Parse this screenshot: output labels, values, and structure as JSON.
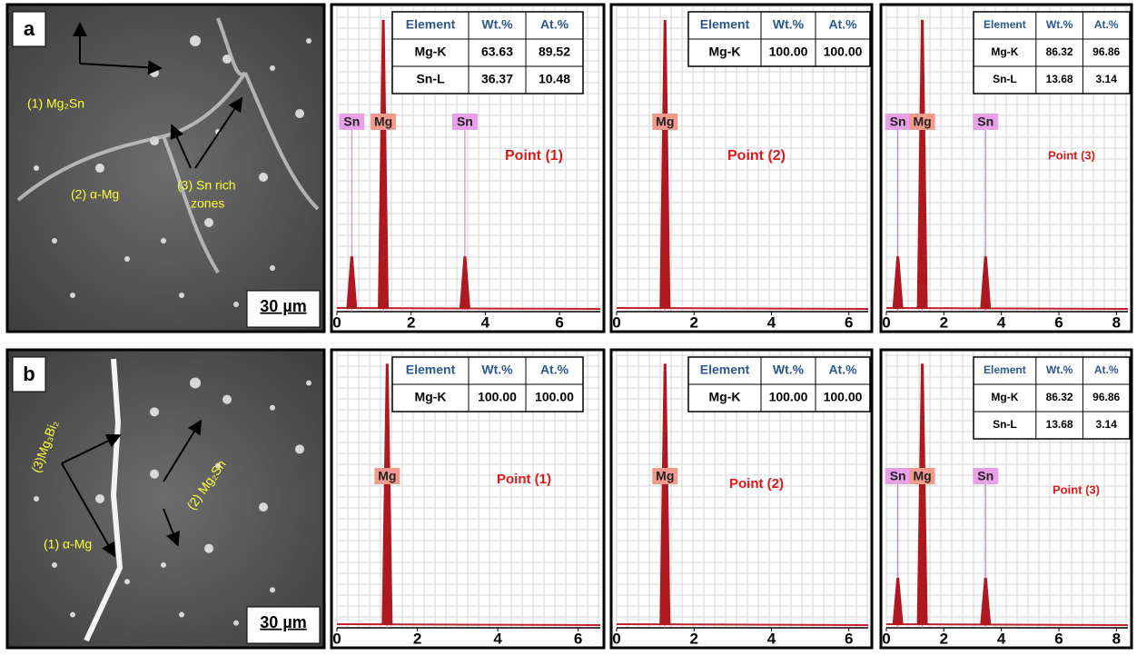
{
  "panels": [
    {
      "letter": "a",
      "scale_bar": "30 µm",
      "sem_labels": [
        "(1) Mg₂Sn",
        "(2) α-Mg",
        "(3) Sn rich",
        "zones"
      ],
      "spectra": [
        {
          "point": "Point (1)",
          "table": {
            "header": [
              "Element",
              "Wt.%",
              "At.%"
            ],
            "rows": [
              [
                "Mg-K",
                "63.63",
                "89.52"
              ],
              [
                "Sn-L",
                "36.37",
                "10.48"
              ]
            ]
          },
          "peaks": [
            {
              "label": "Sn",
              "x": 0.4
            },
            {
              "label": "Mg",
              "x": 1.25
            },
            {
              "label": "Sn",
              "x": 3.45
            }
          ],
          "xlim": [
            0,
            7.1
          ],
          "xticks": [
            0,
            2,
            4,
            6
          ]
        },
        {
          "point": "Point (2)",
          "table": {
            "header": [
              "Element",
              "Wt.%",
              "At.%"
            ],
            "rows": [
              [
                "Mg-K",
                "100.00",
                "100.00"
              ]
            ]
          },
          "peaks": [
            {
              "label": "Mg",
              "x": 1.25
            }
          ],
          "xlim": [
            0,
            6.5
          ],
          "xticks": [
            0,
            2,
            4,
            6
          ]
        },
        {
          "point": "Point (3)",
          "table": {
            "header": [
              "Element",
              "Wt.%",
              "At.%"
            ],
            "rows": [
              [
                "Mg-K",
                "86.32",
                "96.86"
              ],
              [
                "Sn-L",
                "13.68",
                "3.14"
              ]
            ]
          },
          "peaks": [
            {
              "label": "Sn",
              "x": 0.4
            },
            {
              "label": "Mg",
              "x": 1.25
            },
            {
              "label": "Sn",
              "x": 3.45
            }
          ],
          "xlim": [
            0,
            8.4
          ],
          "xticks": [
            0,
            2,
            4,
            6,
            8
          ]
        }
      ]
    },
    {
      "letter": "b",
      "scale_bar": "30 µm",
      "sem_labels": [
        "(3)Mg₃Bi₂",
        "(2) Mg₂Sn",
        "(1) α-Mg"
      ],
      "spectra": [
        {
          "point": "Point (1)",
          "table": {
            "header": [
              "Element",
              "Wt.%",
              "At.%"
            ],
            "rows": [
              [
                "Mg-K",
                "100.00",
                "100.00"
              ]
            ]
          },
          "peaks": [
            {
              "label": "Mg",
              "x": 1.25
            }
          ],
          "xlim": [
            0,
            6.55
          ],
          "xticks": [
            0,
            2,
            4,
            6
          ]
        },
        {
          "point": "Point (2)",
          "table": {
            "header": [
              "Element",
              "Wt.%",
              "At.%"
            ],
            "rows": [
              [
                "Mg-K",
                "100.00",
                "100.00"
              ]
            ]
          },
          "peaks": [
            {
              "label": "Mg",
              "x": 1.25
            }
          ],
          "xlim": [
            0,
            6.5
          ],
          "xticks": [
            0,
            2,
            4,
            6
          ]
        },
        {
          "point": "Point (3)",
          "table": {
            "header": [
              "Element",
              "Wt.%",
              "At.%"
            ],
            "rows": [
              [
                "Mg-K",
                "86.32",
                "96.86"
              ],
              [
                "Sn-L",
                "13.68",
                "3.14"
              ]
            ]
          },
          "peaks": [
            {
              "label": "Sn",
              "x": 0.4
            },
            {
              "label": "Mg",
              "x": 1.25
            },
            {
              "label": "Sn",
              "x": 3.45
            }
          ],
          "xlim": [
            0,
            8.4
          ],
          "xticks": [
            0,
            2,
            4,
            6,
            8
          ]
        }
      ]
    }
  ]
}
